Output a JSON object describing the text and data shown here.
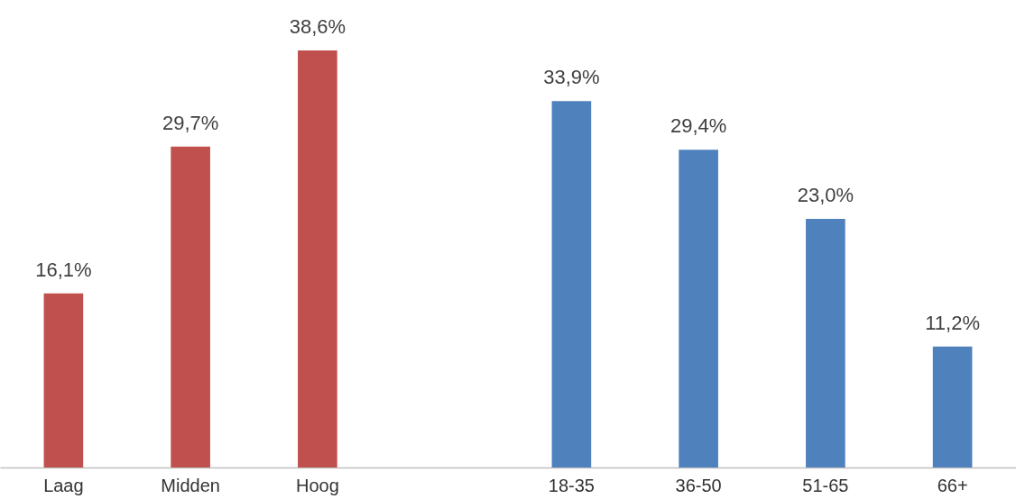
{
  "chart_data": {
    "type": "bar",
    "categories": [
      "Laag",
      "Midden",
      "Hoog",
      null,
      "18-35",
      "36-50",
      "51-65",
      "66+"
    ],
    "values": [
      16.1,
      29.7,
      38.6,
      null,
      33.9,
      29.4,
      23.0,
      11.2
    ],
    "colors": [
      "#c0504d",
      "#c0504d",
      "#c0504d",
      null,
      "#4f81bd",
      "#4f81bd",
      "#4f81bd",
      "#4f81bd"
    ],
    "value_labels": [
      "16,1%",
      "29,7%",
      "38,6%",
      null,
      "33,9%",
      "29,4%",
      "23,0%",
      "11,2%"
    ],
    "grid": false
  }
}
